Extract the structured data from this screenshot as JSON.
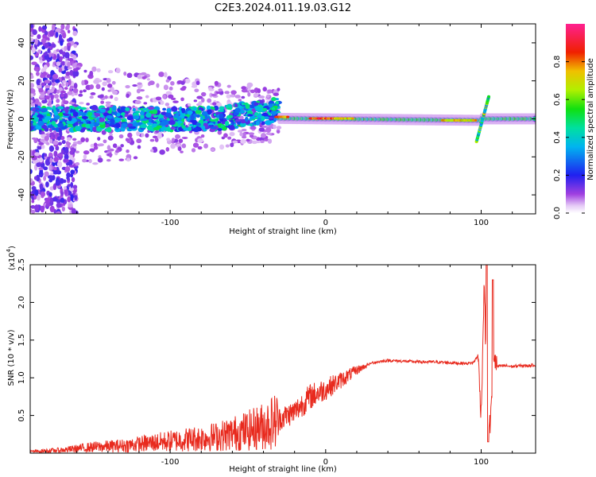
{
  "figure": {
    "title": "C2E3.2024.011.19.03.G12"
  },
  "colors": {
    "background": "#ffffff",
    "snr_line": "#e82a1e",
    "spectrogram_fill": "#ffffff"
  },
  "chart_data": [
    {
      "type": "heatmap",
      "title": "C2E3.2024.011.19.03.G12",
      "xlabel": "Height of straight line (km)",
      "ylabel": "Frequency (Hz)",
      "xlim": [
        -190,
        135
      ],
      "ylim": [
        -50,
        50
      ],
      "x_ticks": [
        -100,
        0,
        100
      ],
      "x_tick_labels": [
        "-100",
        "0",
        "100"
      ],
      "y_ticks": [
        -40,
        -20,
        0,
        20,
        40
      ],
      "y_tick_labels": [
        "-40",
        "-20",
        "0",
        "20",
        "40"
      ],
      "colorbar": {
        "label": "Normalized spectral amplitude",
        "range": [
          0,
          1
        ],
        "ticks": [
          0.0,
          0.2,
          0.4,
          0.6,
          0.8
        ],
        "tick_labels": [
          "0.0",
          "0.2",
          "0.4",
          "0.6",
          "0.8"
        ],
        "colormap": "rainbow (white, purple, blue, cyan, green, yellow, red, magenta)"
      },
      "features": [
        {
          "description": "scattered noise columns",
          "x_range": [
            -190,
            -160
          ],
          "y_range": [
            -50,
            50
          ],
          "amplitude": 0.15
        },
        {
          "description": "noisy band around 0 Hz",
          "x_range": [
            -190,
            -30
          ],
          "y_range": [
            -8,
            12
          ],
          "amplitude": 0.4
        },
        {
          "description": "strong narrow band",
          "x_range": [
            -30,
            135
          ],
          "y_range": [
            -2,
            2
          ],
          "amplitude": 0.5
        },
        {
          "description": "peak near zero height",
          "x_range": [
            -10,
            10
          ],
          "y_range": [
            -1,
            1
          ],
          "amplitude": 0.95
        },
        {
          "description": "frequency swing",
          "x_range": [
            97,
            105
          ],
          "y_range": [
            -12,
            12
          ],
          "amplitude": 0.5
        }
      ],
      "grid": false,
      "legend": "none"
    },
    {
      "type": "line",
      "xlabel": "Height of straight line (km)",
      "ylabel": "SNR (10 * v/v)",
      "y_scale_label": "(x10",
      "y_scale_exponent": "4",
      "y_scale_suffix": ")",
      "xlim": [
        -190,
        135
      ],
      "ylim": [
        0,
        2.5
      ],
      "x_ticks": [
        -100,
        0,
        100
      ],
      "x_tick_labels": [
        "-100",
        "0",
        "100"
      ],
      "y_ticks": [
        0.5,
        1.0,
        1.5,
        2.0,
        2.5
      ],
      "y_tick_labels": [
        "0.5",
        "1.0",
        "1.5",
        "2.0",
        "2.5"
      ],
      "series": [
        {
          "color": "#e82a1e",
          "x": [
            -190,
            -170,
            -150,
            -130,
            -110,
            -90,
            -70,
            -50,
            -40,
            -30,
            -20,
            -10,
            0,
            10,
            20,
            30,
            40,
            50,
            60,
            70,
            80,
            90,
            95,
            98,
            100,
            102,
            104,
            106,
            108,
            110,
            115,
            120,
            125,
            130,
            135
          ],
          "y": [
            0.02,
            0.04,
            0.08,
            0.1,
            0.14,
            0.18,
            0.22,
            0.3,
            0.36,
            0.45,
            0.55,
            0.75,
            0.85,
            0.97,
            1.1,
            1.2,
            1.23,
            1.22,
            1.21,
            1.21,
            1.2,
            1.19,
            1.2,
            1.3,
            0.5,
            2.3,
            0.35,
            0.4,
            1.3,
            1.15,
            1.16,
            1.15,
            1.16,
            1.16,
            1.17
          ]
        }
      ],
      "grid": false,
      "legend": "none"
    }
  ]
}
